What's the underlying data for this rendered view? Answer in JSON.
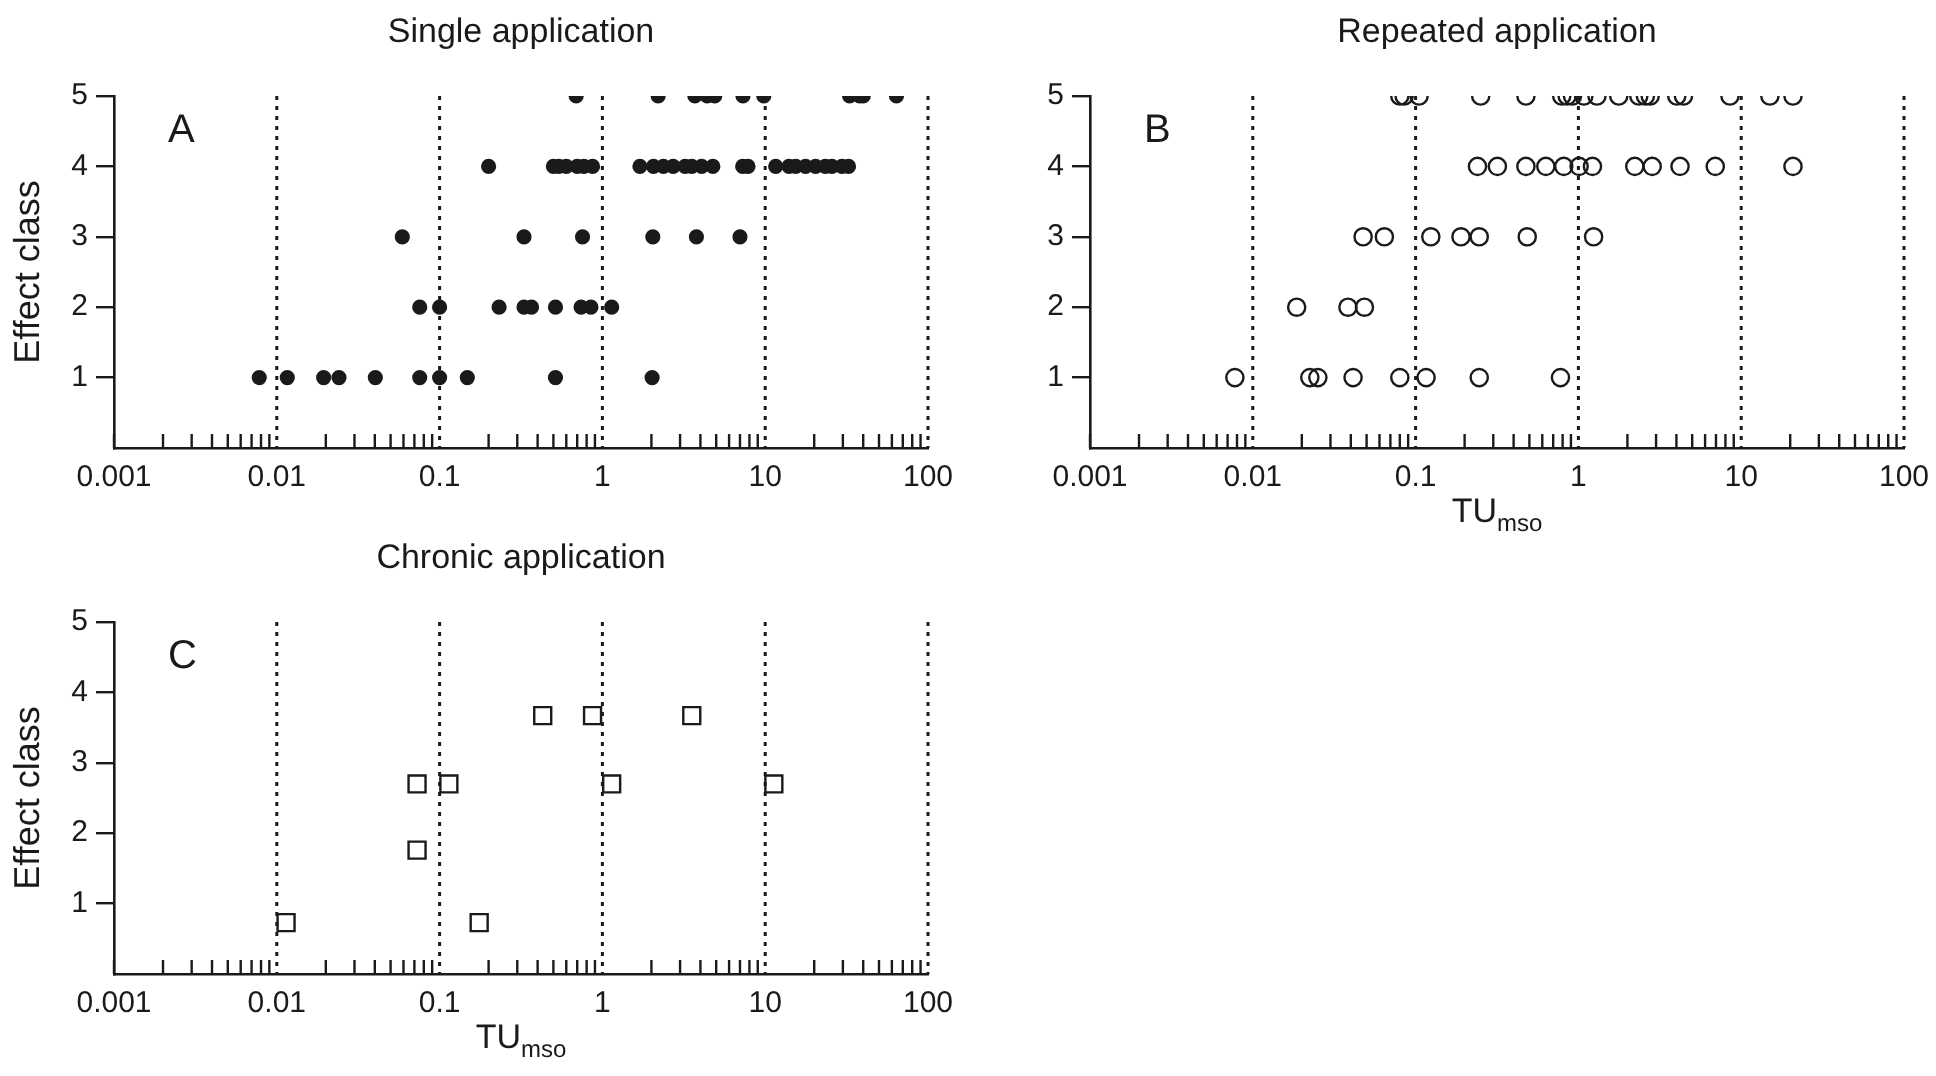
{
  "chart_data": [
    {
      "type": "scatter",
      "title": "Single application",
      "ylabel": "Effect class",
      "annotations": [
        "A"
      ],
      "marker": "circle",
      "color": "#1a1a1a",
      "legend": false,
      "grid": false,
      "log": "x",
      "x": [
        0.69,
        2.2,
        3.7,
        4.4,
        4.9,
        7.3,
        9.8,
        33,
        38,
        40,
        64,
        0.2,
        0.5,
        0.54,
        0.6,
        0.7,
        0.77,
        0.87,
        1.7,
        2.06,
        2.37,
        2.72,
        3.22,
        3.54,
        4.07,
        4.77,
        7.27,
        7.84,
        11.6,
        14,
        15.4,
        17.7,
        20.4,
        23.4,
        25.7,
        29.6,
        32.5,
        0.059,
        0.33,
        0.755,
        2.04,
        3.78,
        7,
        0.0755,
        0.1,
        0.232,
        0.33,
        0.367,
        0.515,
        0.74,
        0.85,
        1.14,
        0.0078,
        0.0116,
        0.0194,
        0.0241,
        0.0403,
        0.0755,
        0.1,
        0.148,
        0.515,
        2.02
      ],
      "values": [
        5,
        5,
        5,
        5,
        5,
        5,
        5,
        5,
        5,
        5,
        5,
        4,
        4,
        4,
        4,
        4,
        4,
        4,
        4,
        4,
        4,
        4,
        4,
        4,
        4,
        4,
        4,
        4,
        4,
        4,
        4,
        4,
        4,
        4,
        4,
        4,
        4,
        3,
        3,
        3,
        3,
        3,
        3,
        2,
        2,
        2,
        2,
        2,
        2,
        2,
        2,
        2,
        1,
        1,
        1,
        1,
        1,
        1,
        1,
        1,
        1,
        1
      ],
      "xlim": [
        0.001,
        100
      ],
      "ylim": [
        0,
        5
      ],
      "yticks": [
        1,
        2,
        3,
        4,
        5
      ],
      "xticks": [
        0.001,
        {
          "value": 0.002,
          "label": null
        },
        {
          "value": 0.003,
          "label": null
        },
        {
          "value": 0.004,
          "label": null
        },
        {
          "value": 0.005,
          "label": null
        },
        {
          "value": 0.006,
          "label": null
        },
        {
          "value": 0.007,
          "label": null
        },
        {
          "value": 0.008,
          "label": null
        },
        {
          "value": 0.009,
          "label": null
        },
        0.01,
        {
          "value": 0.02,
          "label": null
        },
        {
          "value": 0.03,
          "label": null
        },
        {
          "value": 0.04,
          "label": null
        },
        {
          "value": 0.05,
          "label": null
        },
        {
          "value": 0.06,
          "label": null
        },
        {
          "value": 0.07,
          "label": null
        },
        {
          "value": 0.08,
          "label": null
        },
        {
          "value": 0.09,
          "label": null
        },
        0.1,
        {
          "value": 0.2,
          "label": null
        },
        {
          "value": 0.3,
          "label": null
        },
        {
          "value": 0.4,
          "label": null
        },
        {
          "value": 0.5,
          "label": null
        },
        {
          "value": 0.6,
          "label": null
        },
        {
          "value": 0.7,
          "label": null
        },
        {
          "value": 0.8,
          "label": null
        },
        {
          "value": 0.9,
          "label": null
        },
        1,
        {
          "value": 2,
          "label": null
        },
        {
          "value": 3,
          "label": null
        },
        {
          "value": 4,
          "label": null
        },
        {
          "value": 5,
          "label": null
        },
        {
          "value": 6,
          "label": null
        },
        {
          "value": 7,
          "label": null
        },
        {
          "value": 8,
          "label": null
        },
        {
          "value": 9,
          "label": null
        },
        10,
        {
          "value": 20,
          "label": null
        },
        {
          "value": 30,
          "label": null
        },
        {
          "value": 40,
          "label": null
        },
        {
          "value": 50,
          "label": null
        },
        {
          "value": 60,
          "label": null
        },
        {
          "value": 70,
          "label": null
        },
        {
          "value": 80,
          "label": null
        },
        {
          "value": 90,
          "label": null
        },
        100
      ],
      "ref_lines": [
        {
          "axis": "x",
          "value": 0.01,
          "line_style": "dotted",
          "color": "#1a1a1a"
        },
        {
          "axis": "x",
          "value": 0.1,
          "line_style": "dotted",
          "color": "#1a1a1a"
        },
        {
          "axis": "x",
          "value": 1,
          "line_style": "dotted",
          "color": "#1a1a1a"
        },
        {
          "axis": "x",
          "value": 10,
          "line_style": "dotted",
          "color": "#1a1a1a"
        }
      ]
    },
    {
      "type": "scatter",
      "title": "Repeated application",
      "xlabel": "TU$_{mso}$",
      "annotations": [
        "B"
      ],
      "marker": "circle",
      "color": "#1a1a1a",
      "legend": false,
      "grid": false,
      "log": "x",
      "x": [
        0.08,
        0.085,
        0.105,
        0.251,
        0.476,
        0.79,
        0.853,
        0.92,
        1.08,
        1.3,
        1.77,
        2.35,
        2.58,
        2.76,
        4.02,
        4.42,
        8.53,
        15,
        20.8,
        0.24,
        0.318,
        0.476,
        0.631,
        0.813,
        1.01,
        1.22,
        2.22,
        2.84,
        4.21,
        6.93,
        20.8,
        0.0476,
        0.0643,
        0.124,
        0.19,
        0.246,
        0.485,
        1.24,
        0.0186,
        0.0384,
        0.0485,
        0.00776,
        0.0224,
        0.0251,
        0.0413,
        0.08,
        0.116,
        0.246,
        0.776
      ],
      "values": [
        5,
        5,
        5,
        5,
        5,
        5,
        5,
        5,
        5,
        5,
        5,
        5,
        5,
        5,
        5,
        5,
        5,
        5,
        5,
        4,
        4,
        4,
        4,
        4,
        4,
        4,
        4,
        4,
        4,
        4,
        4,
        3,
        3,
        3,
        3,
        3,
        3,
        3,
        2,
        2,
        2,
        1,
        1,
        1,
        1,
        1,
        1,
        1,
        1
      ],
      "xlim": [
        0.001,
        100
      ],
      "ylim": [
        0,
        5
      ],
      "yticks": [
        1,
        2,
        3,
        4,
        5
      ],
      "xticks": [
        0.001,
        {
          "value": 0.002,
          "label": null
        },
        {
          "value": 0.003,
          "label": null
        },
        {
          "value": 0.004,
          "label": null
        },
        {
          "value": 0.005,
          "label": null
        },
        {
          "value": 0.006,
          "label": null
        },
        {
          "value": 0.007,
          "label": null
        },
        {
          "value": 0.008,
          "label": null
        },
        {
          "value": 0.009,
          "label": null
        },
        0.01,
        {
          "value": 0.02,
          "label": null
        },
        {
          "value": 0.03,
          "label": null
        },
        {
          "value": 0.04,
          "label": null
        },
        {
          "value": 0.05,
          "label": null
        },
        {
          "value": 0.06,
          "label": null
        },
        {
          "value": 0.07,
          "label": null
        },
        {
          "value": 0.08,
          "label": null
        },
        {
          "value": 0.09,
          "label": null
        },
        0.1,
        {
          "value": 0.2,
          "label": null
        },
        {
          "value": 0.3,
          "label": null
        },
        {
          "value": 0.4,
          "label": null
        },
        {
          "value": 0.5,
          "label": null
        },
        {
          "value": 0.6,
          "label": null
        },
        {
          "value": 0.7,
          "label": null
        },
        {
          "value": 0.8,
          "label": null
        },
        {
          "value": 0.9,
          "label": null
        },
        1,
        {
          "value": 2,
          "label": null
        },
        {
          "value": 3,
          "label": null
        },
        {
          "value": 4,
          "label": null
        },
        {
          "value": 5,
          "label": null
        },
        {
          "value": 6,
          "label": null
        },
        {
          "value": 7,
          "label": null
        },
        {
          "value": 8,
          "label": null
        },
        {
          "value": 9,
          "label": null
        },
        10,
        {
          "value": 20,
          "label": null
        },
        {
          "value": 30,
          "label": null
        },
        {
          "value": 40,
          "label": null
        },
        {
          "value": 50,
          "label": null
        },
        {
          "value": 60,
          "label": null
        },
        {
          "value": 70,
          "label": null
        },
        {
          "value": 80,
          "label": null
        },
        {
          "value": 90,
          "label": null
        },
        100
      ],
      "ref_lines": [
        {
          "axis": "x",
          "value": 0.01,
          "line_style": "dotted",
          "color": "#1a1a1a"
        },
        {
          "axis": "x",
          "value": 0.1,
          "line_style": "dotted",
          "color": "#1a1a1a"
        },
        {
          "axis": "x",
          "value": 1,
          "line_style": "dotted",
          "color": "#1a1a1a"
        },
        {
          "axis": "x",
          "value": 10,
          "line_style": "dotted",
          "color": "#1a1a1a"
        }
      ]
    },
    {
      "type": "scatter",
      "title": "Chronic application",
      "xlabel": "TU$_{mso}$",
      "ylabel": "Effect class",
      "annotations": [
        "C"
      ],
      "marker": "square",
      "color": "#1a1a1a",
      "legend": false,
      "grid": false,
      "log": "x",
      "x": [
        0.0114,
        0.0727,
        0.0727,
        0.114,
        0.175,
        0.43,
        0.87,
        1.14,
        3.54,
        11.3
      ],
      "values": [
        0.73,
        2.7,
        1.76,
        2.7,
        0.73,
        3.67,
        3.67,
        2.7,
        3.67,
        2.7
      ],
      "xlim": [
        0.001,
        100
      ],
      "ylim": [
        0,
        5
      ],
      "yticks": [
        1,
        2,
        3,
        4,
        5
      ],
      "xticks": [
        0.001,
        {
          "value": 0.002,
          "label": null
        },
        {
          "value": 0.003,
          "label": null
        },
        {
          "value": 0.004,
          "label": null
        },
        {
          "value": 0.005,
          "label": null
        },
        {
          "value": 0.006,
          "label": null
        },
        {
          "value": 0.007,
          "label": null
        },
        {
          "value": 0.008,
          "label": null
        },
        {
          "value": 0.009,
          "label": null
        },
        0.01,
        {
          "value": 0.02,
          "label": null
        },
        {
          "value": 0.03,
          "label": null
        },
        {
          "value": 0.04,
          "label": null
        },
        {
          "value": 0.05,
          "label": null
        },
        {
          "value": 0.06,
          "label": null
        },
        {
          "value": 0.07,
          "label": null
        },
        {
          "value": 0.08,
          "label": null
        },
        {
          "value": 0.09,
          "label": null
        },
        0.1,
        {
          "value": 0.2,
          "label": null
        },
        {
          "value": 0.3,
          "label": null
        },
        {
          "value": 0.4,
          "label": null
        },
        {
          "value": 0.5,
          "label": null
        },
        {
          "value": 0.6,
          "label": null
        },
        {
          "value": 0.7,
          "label": null
        },
        {
          "value": 0.8,
          "label": null
        },
        {
          "value": 0.9,
          "label": null
        },
        1,
        {
          "value": 2,
          "label": null
        },
        {
          "value": 3,
          "label": null
        },
        {
          "value": 4,
          "label": null
        },
        {
          "value": 5,
          "label": null
        },
        {
          "value": 6,
          "label": null
        },
        {
          "value": 7,
          "label": null
        },
        {
          "value": 8,
          "label": null
        },
        {
          "value": 9,
          "label": null
        },
        10,
        {
          "value": 20,
          "label": null
        },
        {
          "value": 30,
          "label": null
        },
        {
          "value": 40,
          "label": null
        },
        {
          "value": 50,
          "label": null
        },
        {
          "value": 60,
          "label": null
        },
        {
          "value": 70,
          "label": null
        },
        {
          "value": 80,
          "label": null
        },
        {
          "value": 90,
          "label": null
        },
        100
      ],
      "ref_lines": [
        {
          "axis": "x",
          "value": 0.01,
          "line_style": "dotted",
          "color": "#1a1a1a"
        },
        {
          "axis": "x",
          "value": 0.1,
          "line_style": "dotted",
          "color": "#1a1a1a"
        },
        {
          "axis": "x",
          "value": 1,
          "line_style": "dotted",
          "color": "#1a1a1a"
        },
        {
          "axis": "x",
          "value": 10,
          "line_style": "dotted",
          "color": "#1a1a1a"
        }
      ]
    }
  ]
}
